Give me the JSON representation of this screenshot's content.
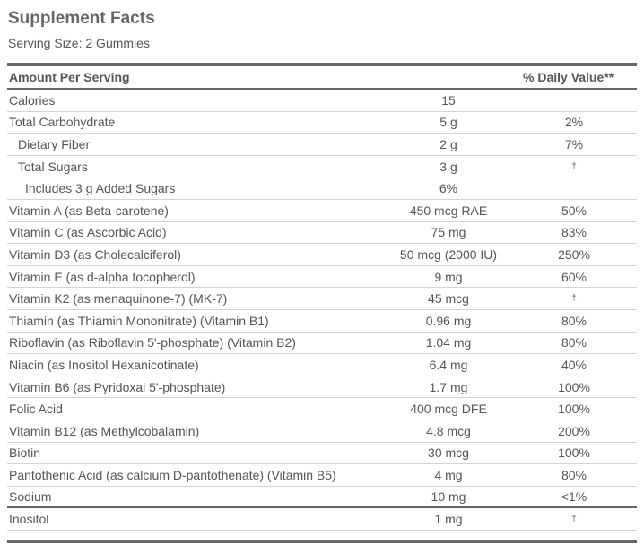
{
  "header": {
    "title": "Supplement Facts",
    "serving_size": "Serving Size: 2 Gummies"
  },
  "table": {
    "columns": {
      "amount": "Amount Per Serving",
      "daily_value": "% Daily Value**"
    },
    "rows": [
      {
        "name": "Calories",
        "amount": "15"
      },
      {
        "name": "Total Carbohydrate",
        "amount": "5 g",
        "dv": "2%"
      },
      {
        "name": "Dietary Fiber",
        "amount": "2 g",
        "dv": "7%"
      },
      {
        "name": "Total Sugars",
        "amount": "3 g",
        "dv": "†"
      },
      {
        "name": "Includes 3 g Added Sugars",
        "amount": "6%"
      },
      {
        "name": "Vitamin A (as Beta-carotene)",
        "amount": "450 mcg RAE",
        "dv": "50%"
      },
      {
        "name": "Vitamin C (as Ascorbic Acid)",
        "amount": "75 mg",
        "dv": "83%"
      },
      {
        "name": "Vitamin D3 (as Cholecalciferol)",
        "amount": "50 mcg (2000 IU)",
        "dv": "250%"
      },
      {
        "name": "Vitamin E (as d-alpha tocopherol)",
        "amount": "9 mg",
        "dv": "60%"
      },
      {
        "name": "Vitamin K2 (as menaquinone-7) (MK-7)",
        "amount": "45 mcg",
        "dv": "†"
      },
      {
        "name": "Thiamin (as Thiamin Mononitrate) (Vitamin B1)",
        "amount": "0.96 mg",
        "dv": "80%"
      },
      {
        "name": "Riboflavin (as Riboflavin 5'-phosphate) (Vitamin B2)",
        "amount": "1.04 mg",
        "dv": "80%"
      },
      {
        "name": "Niacin (as Inositol Hexanicotinate)",
        "amount": "6.4 mg",
        "dv": "40%"
      },
      {
        "name": "Vitamin B6 (as Pyridoxal 5'-phosphate)",
        "amount": "1.7 mg",
        "dv": "100%"
      },
      {
        "name": "Folic Acid",
        "amount": "400 mcg DFE",
        "dv": "100%"
      },
      {
        "name": "Vitamin B12 (as Methylcobalamin)",
        "amount": "4.8 mcg",
        "dv": "200%"
      },
      {
        "name": "Biotin",
        "amount": "30 mcg",
        "dv": "100%"
      },
      {
        "name": "Pantothenic Acid (as calcium D-pantothenate) (Vitamin B5)",
        "amount": "4 mg",
        "dv": "80%"
      },
      {
        "name": "Sodium",
        "amount": "10 mg",
        "dv": "<1%"
      },
      {
        "name": "Inositol",
        "amount": "1 mg",
        "dv": "†"
      }
    ]
  }
}
